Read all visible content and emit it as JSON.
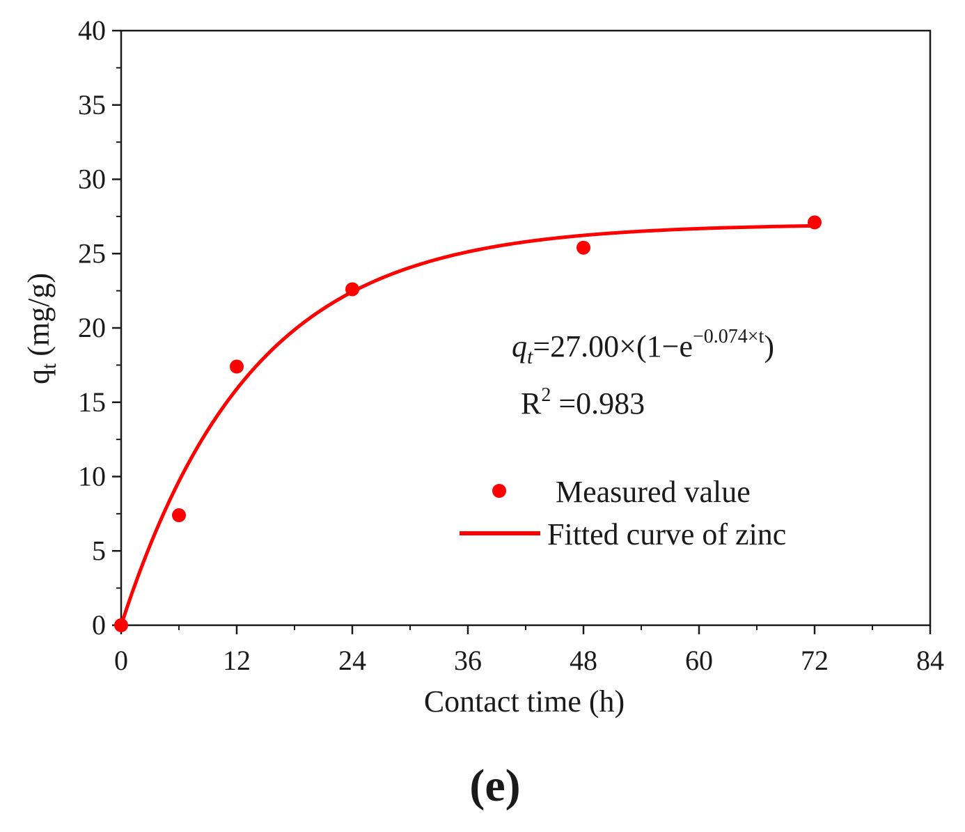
{
  "chart_data": {
    "type": "scatter",
    "title": "",
    "xlabel": "Contact time (h)",
    "ylabel_main": "q",
    "ylabel_sub": "t",
    "ylabel_units": "(mg/g)",
    "xlim": [
      0,
      84
    ],
    "ylim": [
      0,
      40
    ],
    "xticks": [
      0,
      12,
      24,
      36,
      48,
      60,
      72,
      84
    ],
    "yticks": [
      0,
      5,
      10,
      15,
      20,
      25,
      30,
      35,
      40
    ],
    "grid": false,
    "series": [
      {
        "name": "Measured value",
        "kind": "scatter",
        "color": "#ff0000",
        "x": [
          0,
          6,
          12,
          24,
          48,
          72
        ],
        "y": [
          0,
          7.4,
          17.4,
          22.6,
          25.4,
          27.1
        ]
      },
      {
        "name": "Fitted curve of zinc",
        "kind": "line",
        "color": "#ff0000",
        "model": {
          "qe": 27.0,
          "k": 0.074
        },
        "x_range": [
          0,
          72
        ]
      }
    ],
    "legend_position": "center-right",
    "annotation": {
      "eq_var": "q",
      "eq_sub": "t",
      "eq_body": "=27.00×(1−e",
      "eq_exp": "−0.074×t",
      "eq_close": ")",
      "r2_label": "R",
      "r2_sup": "2",
      "r2_value": " =0.983"
    },
    "panel_label": "(e)"
  }
}
